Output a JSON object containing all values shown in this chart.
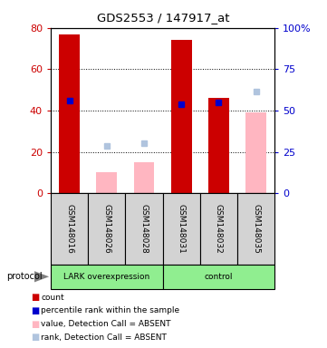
{
  "title": "GDS2553 / 147917_at",
  "samples": [
    "GSM148016",
    "GSM148026",
    "GSM148028",
    "GSM148031",
    "GSM148032",
    "GSM148035"
  ],
  "red_bars": [
    77,
    null,
    null,
    74,
    46,
    null
  ],
  "pink_bars": [
    null,
    10,
    15,
    null,
    null,
    39
  ],
  "blue_dots_y": [
    45,
    null,
    null,
    43,
    44,
    null
  ],
  "light_blue_dots_y": [
    null,
    23,
    24,
    null,
    null,
    49
  ],
  "ylim_left": [
    0,
    80
  ],
  "ylim_right": [
    0,
    100
  ],
  "left_yticks": [
    0,
    20,
    40,
    60,
    80
  ],
  "right_yticks": [
    0,
    25,
    50,
    75,
    100
  ],
  "right_yticklabels": [
    "0",
    "25",
    "50",
    "75",
    "100%"
  ],
  "left_ytick_color": "#cc0000",
  "right_ytick_color": "#0000cc",
  "bar_width": 0.55,
  "legend_items": [
    {
      "color": "#cc0000",
      "label": "count"
    },
    {
      "color": "#0000cc",
      "label": "percentile rank within the sample"
    },
    {
      "color": "#ffb6c1",
      "label": "value, Detection Call = ABSENT"
    },
    {
      "color": "#b0c4de",
      "label": "rank, Detection Call = ABSENT"
    }
  ],
  "group1_label": "LARK overexpression",
  "group2_label": "control",
  "group1_indices": [
    0,
    1,
    2
  ],
  "group2_indices": [
    3,
    4,
    5
  ],
  "protocol_label": "protocol"
}
